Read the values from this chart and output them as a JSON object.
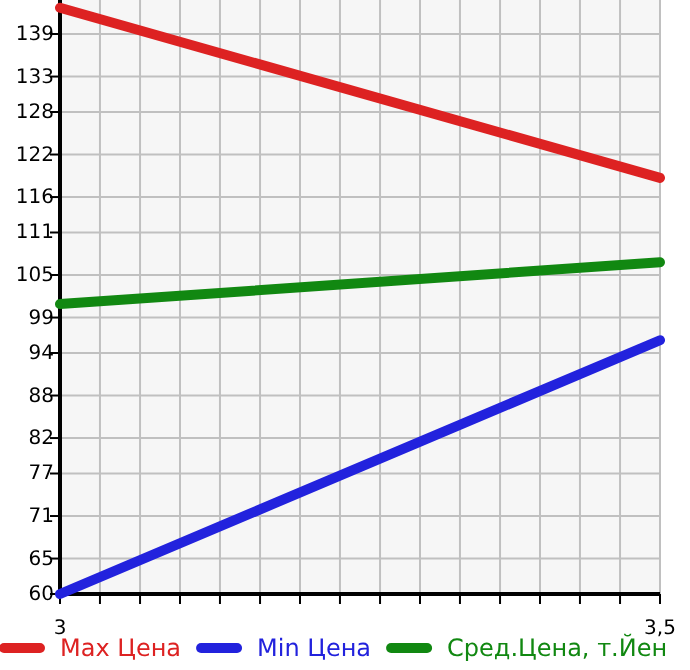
{
  "chart_data": {
    "type": "line",
    "x": [
      3,
      3.5
    ],
    "series": [
      {
        "name": "Max Цена",
        "color": "#dd2222",
        "values": [
          142.7,
          118.7
        ]
      },
      {
        "name": "Min Цена",
        "color": "#2222dd",
        "values": [
          60,
          95.8
        ]
      },
      {
        "name": "Сред.Цена, т.Йен",
        "color": "#118811",
        "values": [
          100.9,
          106.8
        ]
      }
    ],
    "xlim": [
      3,
      3.5
    ],
    "xticks": [
      {
        "value": 3,
        "label": "3"
      },
      {
        "value": 3.0333,
        "label": null
      },
      {
        "value": 3.0667,
        "label": null
      },
      {
        "value": 3.1,
        "label": null
      },
      {
        "value": 3.1333,
        "label": null
      },
      {
        "value": 3.1667,
        "label": null
      },
      {
        "value": 3.2,
        "label": null
      },
      {
        "value": 3.2333,
        "label": null
      },
      {
        "value": 3.2667,
        "label": null
      },
      {
        "value": 3.3,
        "label": null
      },
      {
        "value": 3.3333,
        "label": null
      },
      {
        "value": 3.3667,
        "label": null
      },
      {
        "value": 3.4,
        "label": null
      },
      {
        "value": 3.4333,
        "label": null
      },
      {
        "value": 3.4667,
        "label": null
      },
      {
        "value": 3.5,
        "label": "3,5"
      }
    ],
    "ylim": [
      60,
      143.8
    ],
    "yticks": [
      60,
      65,
      71,
      77,
      82,
      88,
      94,
      99,
      105,
      111,
      116,
      122,
      128,
      133,
      139
    ],
    "grid": true,
    "legend": "bottom",
    "marker": "none",
    "line_style": "solid"
  }
}
